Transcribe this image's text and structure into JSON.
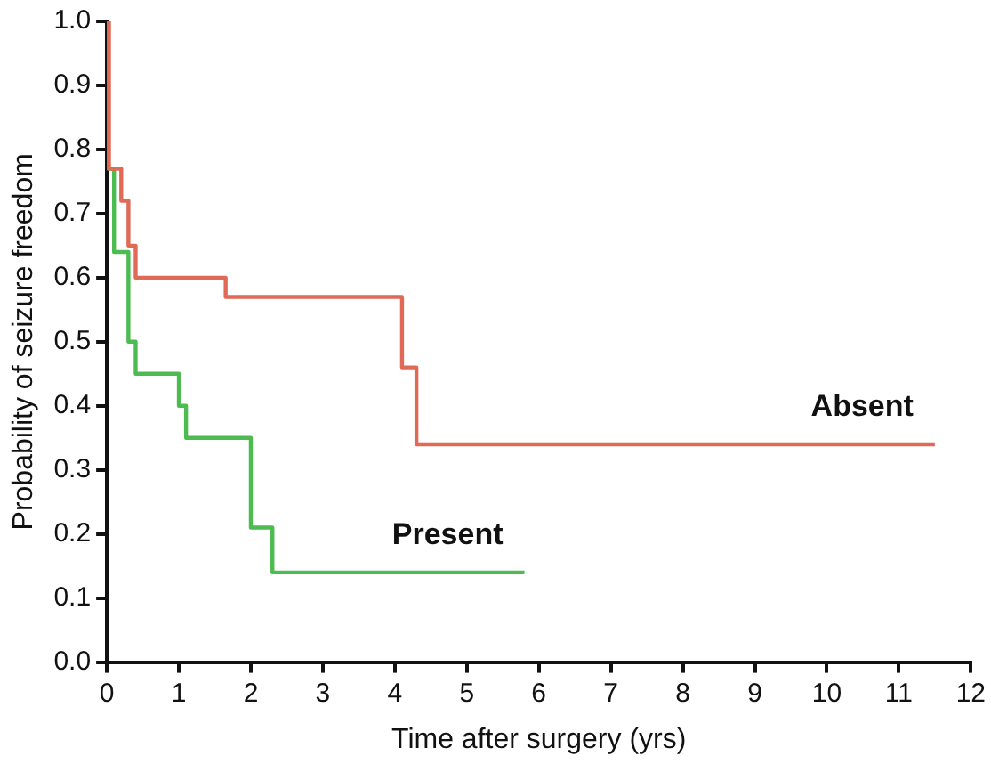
{
  "chart_data": {
    "type": "step",
    "xlabel": "Time after surgery (yrs)",
    "ylabel": "Probability of seizure freedom",
    "xlim": [
      0,
      12
    ],
    "ylim": [
      0,
      1
    ],
    "xticks": [
      0,
      1,
      2,
      3,
      4,
      5,
      6,
      7,
      8,
      9,
      10,
      11,
      12
    ],
    "yticks": [
      {
        "value": 0,
        "label": "0.0"
      },
      0.1,
      0.2,
      0.3,
      0.4,
      0.5,
      0.6,
      0.7,
      0.8,
      0.9,
      {
        "value": 1,
        "label": "1.0"
      }
    ],
    "grid": false,
    "legend": false,
    "marker": "none",
    "line_style": "solid",
    "series": [
      {
        "name": "Absent",
        "color": "#e06a55",
        "x": [
          0,
          0.03,
          0.2,
          0.3,
          0.4,
          1.65,
          4.1,
          4.3,
          11.5
        ],
        "values": [
          1,
          0.77,
          0.72,
          0.65,
          0.6,
          0.57,
          0.46,
          0.34,
          0.34
        ]
      },
      {
        "name": "Present",
        "color": "#4cbb50",
        "x": [
          0,
          0.02,
          0.1,
          0.3,
          0.4,
          1,
          1.1,
          2,
          2.3,
          5.8
        ],
        "values": [
          1,
          0.77,
          0.64,
          0.5,
          0.45,
          0.4,
          0.35,
          0.21,
          0.14,
          0.14
        ]
      }
    ]
  }
}
